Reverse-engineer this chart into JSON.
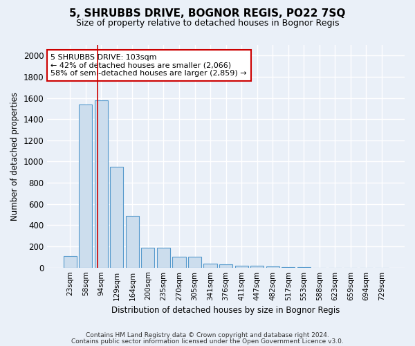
{
  "title1": "5, SHRUBBS DRIVE, BOGNOR REGIS, PO22 7SQ",
  "title2": "Size of property relative to detached houses in Bognor Regis",
  "xlabel": "Distribution of detached houses by size in Bognor Regis",
  "ylabel": "Number of detached properties",
  "footnote1": "Contains HM Land Registry data © Crown copyright and database right 2024.",
  "footnote2": "Contains public sector information licensed under the Open Government Licence v3.0.",
  "bar_labels": [
    "23sqm",
    "58sqm",
    "94sqm",
    "129sqm",
    "164sqm",
    "200sqm",
    "235sqm",
    "270sqm",
    "305sqm",
    "341sqm",
    "376sqm",
    "411sqm",
    "447sqm",
    "482sqm",
    "517sqm",
    "553sqm",
    "588sqm",
    "623sqm",
    "659sqm",
    "694sqm",
    "729sqm"
  ],
  "bar_values": [
    110,
    1540,
    1580,
    950,
    490,
    185,
    185,
    100,
    100,
    40,
    30,
    20,
    15,
    10,
    5,
    2,
    1,
    0,
    0,
    0,
    0
  ],
  "bar_color": "#ccdded",
  "bar_edge_color": "#5599cc",
  "background_color": "#eaf0f8",
  "grid_color": "#ffffff",
  "ylim": [
    0,
    2100
  ],
  "yticks": [
    0,
    200,
    400,
    600,
    800,
    1000,
    1200,
    1400,
    1600,
    1800,
    2000
  ],
  "red_line_color": "#cc0000",
  "annotation_text": "5 SHRUBBS DRIVE: 103sqm\n← 42% of detached houses are smaller (2,066)\n58% of semi-detached houses are larger (2,859) →",
  "annotation_box_edge_color": "#cc0000",
  "annotation_box_face_color": "#ffffff",
  "red_line_x": 1.75
}
